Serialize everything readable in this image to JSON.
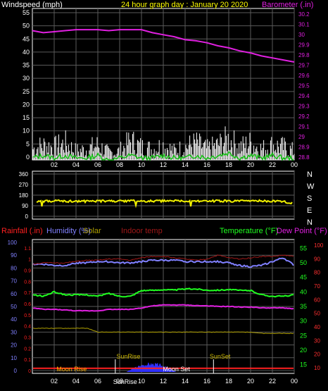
{
  "chart_data": [
    {
      "type": "line",
      "title": "24 hour graph day : January 20 2020",
      "ylabel": "Windspeed (mph)",
      "y2label": "Barometer (.in)",
      "ylim": [
        0,
        60
      ],
      "y2lim": [
        28.8,
        30.3
      ],
      "ticks_left": [
        "55",
        "50",
        "45",
        "40",
        "35",
        "30",
        "25",
        "20",
        "15",
        "10",
        "5",
        "0"
      ],
      "ticks_right": [
        "30.2",
        "30.1",
        "30",
        "29.9",
        "29.8",
        "29.7",
        "29.6",
        "29.5",
        "29.4",
        "29.3",
        "29.2",
        "29.1",
        "29",
        "28.9",
        "28.8"
      ],
      "x_ticks": [
        "02",
        "04",
        "06",
        "08",
        "10",
        "12",
        "14",
        "16",
        "18",
        "20",
        "22",
        "00"
      ],
      "grid": true,
      "series": [
        {
          "name": "Barometer (.in)",
          "color": "#e020e0",
          "x": [
            0,
            1,
            2,
            3,
            4,
            5,
            6,
            7,
            8,
            9,
            10,
            11,
            12,
            13,
            14,
            15,
            16,
            17,
            18,
            19,
            20,
            21,
            22,
            23,
            24
          ],
          "values": [
            30.08,
            30.06,
            30.07,
            30.08,
            30.09,
            30.09,
            30.09,
            30.08,
            30.09,
            30.09,
            30.09,
            30.06,
            30.04,
            30.02,
            29.99,
            29.98,
            29.96,
            29.93,
            29.91,
            29.88,
            29.86,
            29.83,
            29.81,
            29.79,
            29.77
          ]
        },
        {
          "name": "Gust",
          "color": "#ffffff",
          "x": [
            0,
            1,
            2,
            3,
            4,
            5,
            6,
            7,
            8,
            9,
            10,
            11,
            12,
            13,
            14,
            15,
            16,
            17,
            18,
            19,
            20,
            21,
            22,
            23,
            24
          ],
          "values": [
            8,
            10,
            9,
            11,
            7,
            8,
            10,
            6,
            7,
            12,
            9,
            8,
            10,
            7,
            9,
            11,
            8,
            10,
            13,
            9,
            11,
            8,
            10,
            9,
            7
          ]
        },
        {
          "name": "Wind",
          "color": "#10c010",
          "x": [
            0,
            1,
            2,
            3,
            4,
            5,
            6,
            7,
            8,
            9,
            10,
            11,
            12,
            13,
            14,
            15,
            16,
            17,
            18,
            19,
            20,
            21,
            22,
            23,
            24
          ],
          "values": [
            3,
            4,
            3,
            4,
            3,
            3,
            4,
            2,
            3,
            4,
            3,
            3,
            4,
            3,
            3,
            4,
            3,
            4,
            5,
            3,
            4,
            3,
            4,
            3,
            3
          ]
        }
      ]
    },
    {
      "type": "line",
      "labels_right": [
        "N",
        "W",
        "S",
        "E",
        "N"
      ],
      "ticks_left": [
        "360",
        "270",
        "180",
        "90",
        "0"
      ],
      "ylim": [
        0,
        360
      ],
      "x_ticks": [
        "02",
        "04",
        "06",
        "08",
        "10",
        "12",
        "14",
        "16",
        "18",
        "20",
        "22",
        "00"
      ],
      "series": [
        {
          "name": "Wind direction",
          "color": "#f0f000",
          "x": [
            0,
            1,
            2,
            3,
            4,
            5,
            6,
            7,
            8,
            9,
            10,
            11,
            12,
            13,
            14,
            15,
            16,
            17,
            18,
            19,
            20,
            21,
            22,
            23,
            24
          ],
          "values": [
            130,
            125,
            132,
            128,
            130,
            127,
            131,
            129,
            128,
            133,
            126,
            130,
            129,
            131,
            128,
            130,
            127,
            132,
            129,
            130,
            128,
            131,
            129,
            126,
            110
          ]
        }
      ]
    },
    {
      "type": "line",
      "legend": [
        {
          "label": "Rainfall (.in)",
          "color": "#ff2020"
        },
        {
          "label": "Humidity (%)",
          "color": "#8080ff"
        },
        {
          "label": "Solar",
          "color": "#b0a000"
        },
        {
          "label": "Indoor temp",
          "color": "#a01818"
        },
        {
          "label": "Temperature (°F)",
          "color": "#20ff20"
        },
        {
          "label": "Dew Point (°F)",
          "color": "#e020e0"
        }
      ],
      "ticks_humidity": [
        "100",
        "90",
        "80",
        "70",
        "60",
        "50",
        "40",
        "30",
        "20",
        "10",
        "0"
      ],
      "ticks_rain": [
        "1.1",
        "1",
        "0.9",
        "0.8",
        "0.7",
        "0.6",
        "0.5",
        "0.4",
        "0.3",
        "0.2",
        "0.1",
        "0"
      ],
      "ticks_temp": [
        "55",
        "50",
        "45",
        "40",
        "35",
        "30",
        "25",
        "20",
        "15"
      ],
      "ticks_indoor": [
        "100",
        "90",
        "80",
        "70",
        "60",
        "50",
        "40",
        "30",
        "20",
        "10"
      ],
      "x_ticks": [
        "02",
        "04",
        "06",
        "08",
        "10",
        "12",
        "14",
        "16",
        "18",
        "20",
        "22",
        "00"
      ],
      "annotations": [
        "Moon Rise",
        "SunRise",
        "Moon Set",
        "SunSet",
        "SunRise"
      ],
      "grid": true,
      "series": [
        {
          "name": "Humidity (%)",
          "color": "#8080ff",
          "x": [
            0,
            1,
            2,
            3,
            4,
            5,
            6,
            7,
            8,
            9,
            10,
            11,
            12,
            13,
            14,
            15,
            16,
            17,
            18,
            19,
            20,
            21,
            22,
            23,
            24
          ],
          "values": [
            83,
            83,
            82,
            82,
            84,
            84,
            85,
            85,
            84,
            84,
            85,
            86,
            86,
            86,
            85,
            85,
            85,
            85,
            84,
            82,
            81,
            82,
            85,
            88,
            82
          ]
        },
        {
          "name": "Indoor temp",
          "color": "#a01818",
          "x": [
            0,
            1,
            2,
            3,
            4,
            5,
            6,
            7,
            8,
            9,
            10,
            11,
            12,
            13,
            14,
            15,
            16,
            17,
            18,
            19,
            20,
            21,
            22,
            23,
            24
          ],
          "values": [
            83,
            84,
            84,
            84,
            85,
            86,
            86,
            87,
            87,
            86,
            88,
            89,
            89,
            88,
            87,
            86,
            87,
            90,
            88,
            87,
            88,
            89,
            89,
            90,
            89
          ]
        },
        {
          "name": "Temperature (°F)",
          "color": "#20ff20",
          "x": [
            0,
            1,
            2,
            3,
            4,
            5,
            6,
            7,
            8,
            9,
            10,
            11,
            12,
            13,
            14,
            15,
            16,
            17,
            18,
            19,
            20,
            21,
            22,
            23,
            24
          ],
          "values": [
            39,
            38.5,
            40,
            39,
            39,
            39,
            38.5,
            39.5,
            38.5,
            38.5,
            40.5,
            40.5,
            40.8,
            40.6,
            41,
            41,
            40.6,
            40.6,
            40.8,
            40.5,
            40.5,
            39,
            38.5,
            38.5,
            39
          ]
        },
        {
          "name": "Dew Point (°F)",
          "color": "#e020e0",
          "x": [
            0,
            1,
            2,
            3,
            4,
            5,
            6,
            7,
            8,
            9,
            10,
            11,
            12,
            13,
            14,
            15,
            16,
            17,
            18,
            19,
            20,
            21,
            22,
            23,
            24
          ],
          "values": [
            34.5,
            34,
            34,
            33.8,
            33.5,
            33.5,
            33.5,
            34,
            34,
            34,
            34.5,
            35.2,
            35.5,
            35.5,
            35.5,
            35.3,
            35.2,
            35,
            35,
            34.8,
            34.8,
            34.5,
            34.5,
            34.5,
            34.2
          ]
        },
        {
          "name": "Rainfall (.in)",
          "color": "#ff2020",
          "x": [
            0,
            24
          ],
          "values": [
            0.02,
            0.02
          ]
        },
        {
          "name": "Solar",
          "color": "#b0a000",
          "x": [
            0,
            5,
            6,
            7,
            8,
            9,
            10,
            11,
            12,
            13,
            14,
            15,
            16,
            17,
            18,
            19,
            20,
            21,
            22,
            23,
            24
          ],
          "values": [
            33,
            33,
            30,
            30,
            30,
            30,
            30,
            30,
            30,
            30,
            30,
            30,
            30,
            30,
            30,
            30,
            30,
            29,
            29,
            29,
            29
          ]
        }
      ]
    }
  ]
}
